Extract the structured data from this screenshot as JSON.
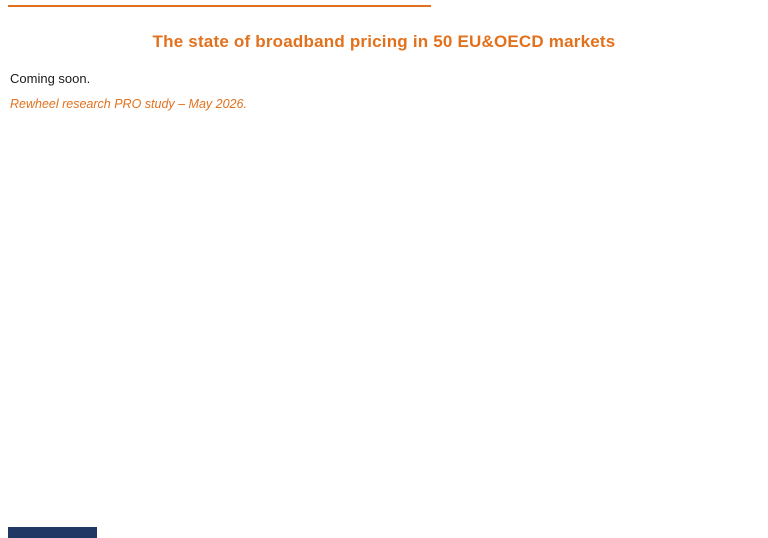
{
  "page": {
    "title": "The state of broadband pricing in 50 EU&OECD markets",
    "coming_soon_text": "Coming soon.",
    "study_note_text": "Rewheel research PRO study – May 2026.",
    "colors": {
      "accent_orange": "#e2711d",
      "footer_navy": "#203864",
      "body_text": "#1a1a1a",
      "background": "#ffffff"
    }
  }
}
